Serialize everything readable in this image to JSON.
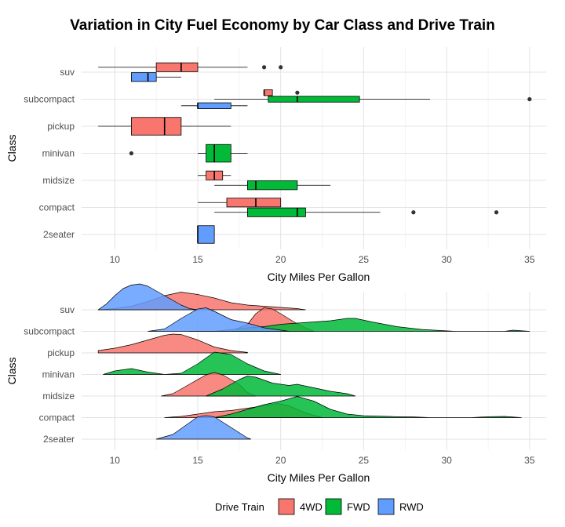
{
  "title": "Variation in City Fuel Economy by Car Class and Drive Train",
  "colors": {
    "4WD": "#F8766D",
    "FWD": "#00BA38",
    "RWD": "#619CFF"
  },
  "legend": {
    "title": "Drive Train",
    "items": [
      "4WD",
      "FWD",
      "RWD"
    ]
  },
  "chart_data": [
    {
      "type": "boxplot",
      "xlabel": "City Miles Per Gallon",
      "ylabel": "Class",
      "xlim": [
        8,
        36
      ],
      "xticks": [
        10,
        15,
        20,
        25,
        30,
        35
      ],
      "categories": [
        "2seater",
        "compact",
        "midsize",
        "minivan",
        "pickup",
        "subcompact",
        "suv"
      ],
      "grid": true,
      "series": [
        {
          "name": "4WD",
          "boxes": [
            {
              "class": "compact",
              "min": 15,
              "q1": 16.75,
              "median": 18.5,
              "q3": 20,
              "max": 20,
              "outliers": []
            },
            {
              "class": "midsize",
              "min": 15,
              "q1": 15.5,
              "median": 16,
              "q3": 16.5,
              "max": 17,
              "outliers": []
            },
            {
              "class": "pickup",
              "min": 9,
              "q1": 11,
              "median": 13,
              "q3": 14,
              "max": 17,
              "outliers": []
            },
            {
              "class": "subcompact",
              "min": 19,
              "q1": 19,
              "median": 19,
              "q3": 19.5,
              "max": 19.5,
              "outliers": [
                21
              ]
            },
            {
              "class": "suv",
              "min": 9,
              "q1": 12.5,
              "median": 14,
              "q3": 15,
              "max": 18,
              "outliers": [
                19,
                20
              ]
            }
          ]
        },
        {
          "name": "FWD",
          "boxes": [
            {
              "class": "compact",
              "min": 16,
              "q1": 18,
              "median": 21,
              "q3": 21.5,
              "max": 26,
              "outliers": [
                28,
                33
              ]
            },
            {
              "class": "midsize",
              "min": 16,
              "q1": 18,
              "median": 18.5,
              "q3": 21,
              "max": 23,
              "outliers": []
            },
            {
              "class": "minivan",
              "min": 15,
              "q1": 15.5,
              "median": 16,
              "q3": 17,
              "max": 18,
              "outliers": [
                11
              ]
            },
            {
              "class": "subcompact",
              "min": 16,
              "q1": 19.25,
              "median": 21,
              "q3": 24.75,
              "max": 29,
              "outliers": [
                35
              ]
            }
          ]
        },
        {
          "name": "RWD",
          "boxes": [
            {
              "class": "2seater",
              "min": 15,
              "q1": 15,
              "median": 15,
              "q3": 16,
              "max": 16,
              "outliers": []
            },
            {
              "class": "subcompact",
              "min": 14,
              "q1": 15,
              "median": 15,
              "q3": 17,
              "max": 18,
              "outliers": []
            },
            {
              "class": "suv",
              "min": 11,
              "q1": 11,
              "median": 12,
              "q3": 12.5,
              "max": 14,
              "outliers": []
            }
          ]
        }
      ]
    },
    {
      "type": "ridgeline",
      "xlabel": "City Miles Per Gallon",
      "ylabel": "Class",
      "xlim": [
        8,
        36
      ],
      "xticks": [
        10,
        15,
        20,
        25,
        30,
        35
      ],
      "categories": [
        "2seater",
        "compact",
        "midsize",
        "minivan",
        "pickup",
        "subcompact",
        "suv"
      ],
      "grid": true,
      "series": [
        {
          "name": "4WD",
          "ridges": [
            {
              "class": "compact",
              "x": [
                13.0,
                14.0,
                15.0,
                16.0,
                17.0,
                18.0,
                19.0,
                19.8,
                20.5,
                21.5,
                22.5
              ],
              "y": [
                0.0,
                0.05,
                0.15,
                0.25,
                0.3,
                0.4,
                0.5,
                0.6,
                0.5,
                0.2,
                0.0
              ]
            },
            {
              "class": "midsize",
              "x": [
                12.8,
                13.5,
                14.5,
                15.5,
                16.0,
                16.5,
                17.5,
                18.0,
                18.5
              ],
              "y": [
                0.0,
                0.1,
                0.5,
                0.9,
                1.0,
                0.9,
                0.5,
                0.15,
                0.0
              ]
            },
            {
              "class": "pickup",
              "x": [
                9.0,
                10.0,
                11.0,
                12.0,
                13.0,
                13.5,
                14.0,
                15.0,
                16.0,
                17.0,
                18.0
              ],
              "y": [
                0.1,
                0.2,
                0.35,
                0.55,
                0.75,
                0.8,
                0.78,
                0.55,
                0.25,
                0.1,
                0.02
              ]
            },
            {
              "class": "subcompact",
              "x": [
                17.0,
                18.0,
                18.5,
                19.0,
                19.5,
                20.0,
                20.8,
                21.5,
                22.0
              ],
              "y": [
                0.0,
                0.3,
                0.75,
                1.0,
                0.95,
                0.75,
                0.4,
                0.15,
                0.0
              ]
            },
            {
              "class": "suv",
              "x": [
                9.0,
                10.0,
                11.0,
                12.0,
                13.0,
                14.0,
                15.0,
                16.0,
                17.0,
                18.0,
                19.0,
                20.0,
                21.0,
                21.5
              ],
              "y": [
                0.0,
                0.05,
                0.15,
                0.35,
                0.6,
                0.75,
                0.65,
                0.5,
                0.3,
                0.2,
                0.15,
                0.1,
                0.05,
                0.0
              ]
            }
          ]
        },
        {
          "name": "FWD",
          "ridges": [
            {
              "class": "compact",
              "x": [
                16.0,
                17.0,
                18.0,
                19.0,
                20.0,
                21.0,
                22.0,
                23.0,
                24.0,
                25.0,
                26.5,
                27.0,
                28.0,
                29.0,
                30.0,
                31.5,
                32.5,
                33.5,
                34.5
              ],
              "y": [
                0.0,
                0.15,
                0.35,
                0.55,
                0.7,
                0.9,
                0.7,
                0.35,
                0.15,
                0.08,
                0.05,
                0.04,
                0.03,
                0.0,
                0.0,
                0.0,
                0.04,
                0.05,
                0.0
              ]
            },
            {
              "class": "midsize",
              "x": [
                15.5,
                16.5,
                17.5,
                18.0,
                18.5,
                19.5,
                20.5,
                21.0,
                22.0,
                23.0,
                24.0,
                24.5
              ],
              "y": [
                0.0,
                0.3,
                0.7,
                0.85,
                0.8,
                0.55,
                0.45,
                0.5,
                0.35,
                0.2,
                0.1,
                0.0
              ]
            },
            {
              "class": "minivan",
              "x": [
                9.3,
                10.0,
                11.0,
                12.0,
                13.0,
                14.0,
                15.0,
                16.0,
                17.0,
                18.0,
                19.0,
                20.0
              ],
              "y": [
                0.0,
                0.15,
                0.25,
                0.1,
                0.0,
                0.05,
                0.45,
                0.95,
                0.85,
                0.45,
                0.15,
                0.0
              ]
            },
            {
              "class": "subcompact",
              "x": [
                14.5,
                16.0,
                18.0,
                19.0,
                20.0,
                21.0,
                22.0,
                23.0,
                24.0,
                24.5,
                25.5,
                27.0,
                28.5,
                30.0,
                30.5,
                33.5,
                34.0,
                35.0
              ],
              "y": [
                0.0,
                0.0,
                0.15,
                0.2,
                0.3,
                0.35,
                0.4,
                0.45,
                0.55,
                0.55,
                0.4,
                0.2,
                0.08,
                0.02,
                0.0,
                0.0,
                0.05,
                0.0
              ]
            }
          ]
        },
        {
          "name": "RWD",
          "ridges": [
            {
              "class": "2seater",
              "x": [
                12.5,
                13.5,
                14.5,
                15.0,
                15.5,
                16.0,
                17.0,
                18.0,
                18.2
              ],
              "y": [
                0.0,
                0.2,
                0.7,
                0.95,
                1.0,
                0.95,
                0.5,
                0.05,
                0.0
              ]
            },
            {
              "class": "subcompact",
              "x": [
                12.0,
                13.0,
                14.0,
                15.0,
                15.5,
                16.0,
                17.0,
                18.0,
                19.0,
                20.0,
                20.5
              ],
              "y": [
                0.0,
                0.1,
                0.55,
                0.95,
                1.0,
                0.85,
                0.5,
                0.35,
                0.15,
                0.05,
                0.0
              ]
            },
            {
              "class": "suv",
              "x": [
                9.0,
                9.5,
                10.0,
                10.5,
                11.0,
                11.5,
                12.0,
                12.5,
                13.0,
                13.5,
                14.0,
                14.5,
                15.0
              ],
              "y": [
                0.0,
                0.25,
                0.6,
                0.9,
                1.05,
                1.1,
                1.0,
                0.8,
                0.6,
                0.4,
                0.2,
                0.05,
                0.0
              ]
            }
          ]
        }
      ]
    }
  ]
}
